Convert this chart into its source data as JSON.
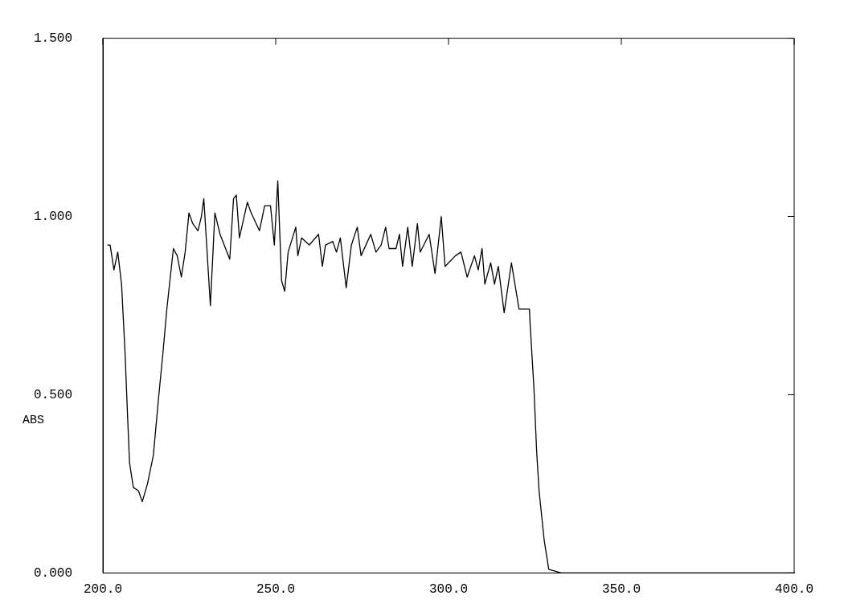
{
  "chart_data": {
    "type": "line",
    "ylabel": "ABS",
    "xlim": [
      200,
      400
    ],
    "xticks": [
      {
        "value": 200,
        "label": "200.0"
      },
      {
        "value": 250,
        "label": "250.0"
      },
      {
        "value": 300,
        "label": "300.0"
      },
      {
        "value": 350,
        "label": "350.0"
      },
      {
        "value": 400,
        "label": "400.0"
      }
    ],
    "ylim": [
      0,
      1.5
    ],
    "yticks": [
      {
        "value": 0,
        "label": "0.000"
      },
      {
        "value": 0.5,
        "label": "0.500"
      },
      {
        "value": 1,
        "label": "1.000"
      },
      {
        "value": 1.5,
        "label": "1.500"
      }
    ],
    "grid": false,
    "legend": false,
    "marker": "none",
    "line_style": "solid",
    "series": [
      {
        "color": "#000000",
        "x": [
          201.3,
          202.1,
          203.2,
          204.3,
          205.4,
          206.4,
          207.1,
          207.7,
          208.8,
          210.3,
          211.4,
          212.9,
          214.6,
          216.1,
          217.4,
          218.5,
          219.5,
          220.4,
          221.5,
          222.7,
          223.8,
          224.9,
          226.0,
          227.5,
          228.5,
          229.2,
          231.1,
          232.4,
          233.9,
          236.7,
          237.8,
          238.6,
          239.5,
          241.8,
          242.9,
          245.3,
          246.8,
          248.5,
          249.6,
          250.6,
          251.7,
          252.6,
          253.6,
          255.8,
          256.4,
          257.5,
          259.7,
          262.4,
          263.5,
          264.4,
          266.5,
          267.6,
          268.7,
          270.4,
          271.9,
          273.6,
          274.7,
          277.5,
          279.0,
          280.5,
          281.8,
          282.8,
          284.8,
          285.8,
          286.7,
          288.2,
          289.5,
          291.0,
          291.8,
          294.4,
          296.1,
          297.9,
          299.0,
          302.0,
          303.6,
          305.4,
          307.5,
          308.6,
          309.7,
          310.5,
          312.2,
          313.3,
          314.4,
          316.1,
          318.2,
          320.4,
          323.4,
          323.6,
          324.7,
          325.5,
          326.2,
          327.7,
          329.0,
          332.6,
          345,
          400
        ],
        "values": [
          0.92,
          0.92,
          0.85,
          0.9,
          0.81,
          0.62,
          0.45,
          0.31,
          0.24,
          0.23,
          0.2,
          0.25,
          0.33,
          0.49,
          0.62,
          0.74,
          0.83,
          0.91,
          0.89,
          0.83,
          0.9,
          1.01,
          0.98,
          0.96,
          1.0,
          1.05,
          0.75,
          1.01,
          0.95,
          0.88,
          1.05,
          1.06,
          0.94,
          1.04,
          1.01,
          0.96,
          1.03,
          1.03,
          0.92,
          1.1,
          0.82,
          0.79,
          0.9,
          0.97,
          0.89,
          0.94,
          0.92,
          0.95,
          0.86,
          0.92,
          0.93,
          0.9,
          0.94,
          0.8,
          0.92,
          0.97,
          0.89,
          0.95,
          0.9,
          0.92,
          0.97,
          0.91,
          0.91,
          0.95,
          0.86,
          0.97,
          0.86,
          0.98,
          0.9,
          0.95,
          0.84,
          1.0,
          0.86,
          0.89,
          0.9,
          0.83,
          0.89,
          0.85,
          0.91,
          0.81,
          0.87,
          0.81,
          0.86,
          0.73,
          0.87,
          0.74,
          0.74,
          0.7,
          0.52,
          0.34,
          0.23,
          0.09,
          0.01,
          0.0,
          0.0,
          0.0
        ]
      }
    ]
  }
}
